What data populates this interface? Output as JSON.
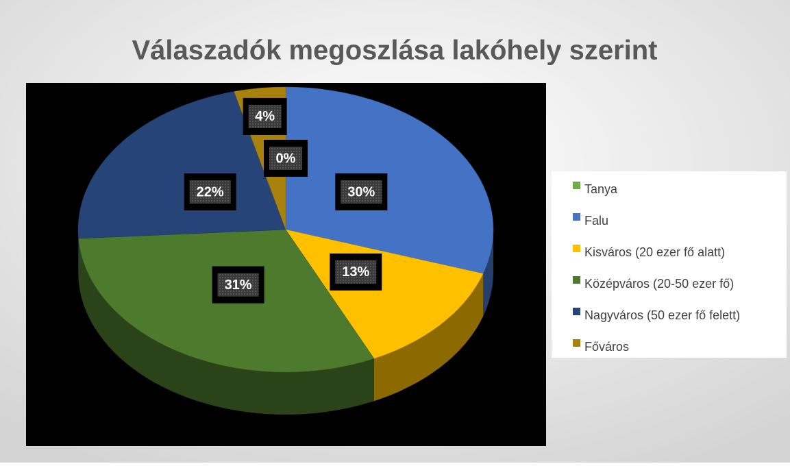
{
  "chart_data": {
    "type": "pie3d",
    "title": "Válaszadók megoszlása lakóhely szerint",
    "categories": [
      "Tanya",
      "Falu",
      "Kisváros (20 ezer fő alatt)",
      "Középváros (20-50 ezer fő)",
      "Nagyváros (50 ezer fő felett)",
      "Főváros"
    ],
    "values": [
      0,
      30,
      13,
      31,
      22,
      4
    ],
    "value_labels": [
      "0%",
      "30%",
      "13%",
      "31%",
      "22%",
      "4%"
    ],
    "colors": [
      "#70ad47",
      "#4472c4",
      "#ffc000",
      "#4e7a2e",
      "#264478",
      "#a8820c"
    ],
    "legend": "right"
  }
}
